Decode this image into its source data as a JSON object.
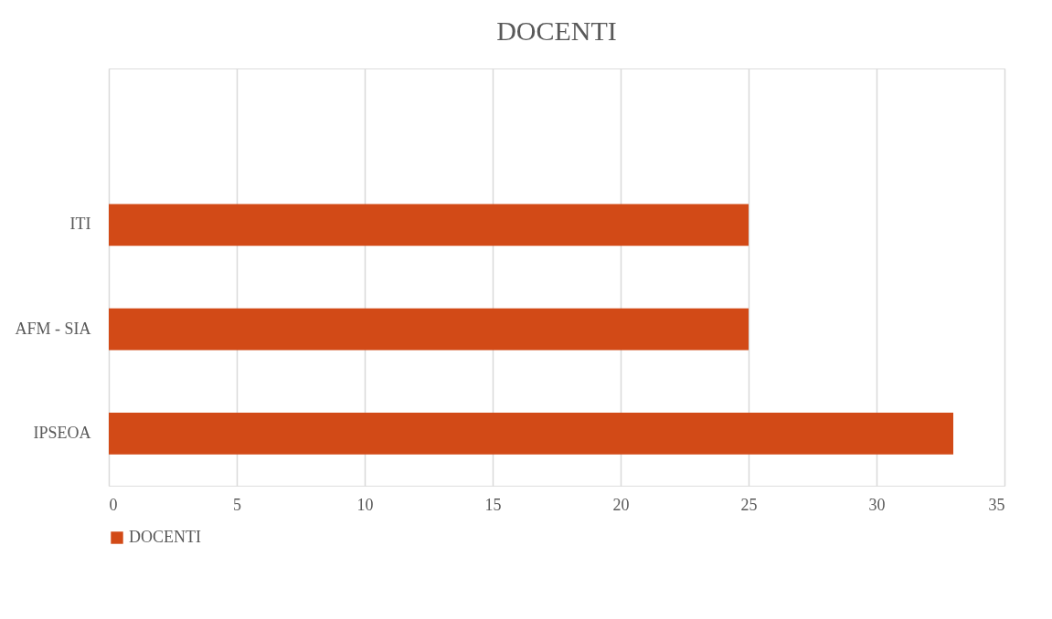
{
  "chart_data": {
    "type": "bar",
    "orientation": "horizontal",
    "title": "DOCENTI",
    "categories": [
      null,
      "ITI",
      "AFM - SIA",
      "IPSEOA"
    ],
    "series": [
      {
        "name": "DOCENTI",
        "color": "#d24a17",
        "values": [
          null,
          25,
          25,
          33
        ]
      }
    ],
    "xlim": [
      0,
      35
    ],
    "xticks": [
      0,
      5,
      10,
      15,
      20,
      25,
      30,
      35
    ],
    "grid": "x",
    "legend": "bottom"
  }
}
